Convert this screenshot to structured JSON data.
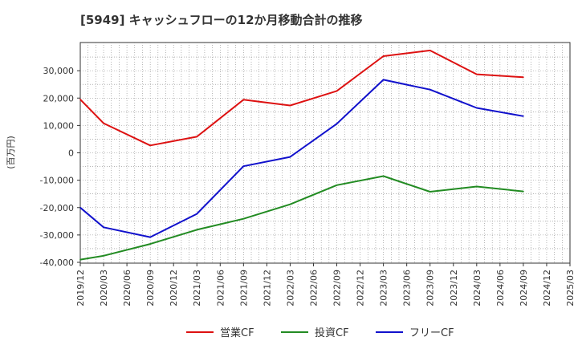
{
  "chart_data": {
    "type": "line",
    "title": "[5949]  キャッシュフローの12か月移動合計の推移",
    "xlabel": "",
    "ylabel": "(百万円)",
    "ylim": [
      -40000,
      40000
    ],
    "y_ticks": [
      -40000,
      -30000,
      -20000,
      -10000,
      0,
      10000,
      20000,
      30000
    ],
    "y_tick_labels": [
      "-40,000",
      "-30,000",
      "-20,000",
      "-10,000",
      "0",
      "10,000",
      "20,000",
      "30,000"
    ],
    "x_ticks": [
      "2019/12",
      "2020/03",
      "2020/06",
      "2020/09",
      "2020/12",
      "2021/03",
      "2021/06",
      "2021/09",
      "2021/12",
      "2022/03",
      "2022/06",
      "2022/09",
      "2022/12",
      "2023/03",
      "2023/06",
      "2023/09",
      "2023/12",
      "2024/03",
      "2024/06",
      "2024/09",
      "2024/12",
      "2025/03"
    ],
    "grid": true,
    "legend_position": "bottom",
    "series": [
      {
        "name": "営業CF",
        "color": "#dd1111",
        "x": [
          "2019/12",
          "2020/03",
          "2020/09",
          "2021/03",
          "2021/09",
          "2022/03",
          "2022/09",
          "2023/03",
          "2023/09",
          "2024/03",
          "2024/09"
        ],
        "values": [
          19500,
          10800,
          2700,
          5900,
          19400,
          17300,
          22600,
          35300,
          37400,
          28700,
          27600
        ]
      },
      {
        "name": "投資CF",
        "color": "#228b22",
        "x": [
          "2019/12",
          "2020/03",
          "2020/09",
          "2021/03",
          "2021/09",
          "2022/03",
          "2022/09",
          "2023/03",
          "2023/09",
          "2024/03",
          "2024/09"
        ],
        "values": [
          -39000,
          -37600,
          -33300,
          -28100,
          -24100,
          -18800,
          -11800,
          -8500,
          -14200,
          -12300,
          -14100
        ]
      },
      {
        "name": "フリーCF",
        "color": "#1111cc",
        "x": [
          "2019/12",
          "2020/03",
          "2020/09",
          "2021/03",
          "2021/09",
          "2022/03",
          "2022/09",
          "2023/03",
          "2023/09",
          "2024/03",
          "2024/09"
        ],
        "values": [
          -20000,
          -27200,
          -30800,
          -22300,
          -4900,
          -1500,
          10600,
          26700,
          23100,
          16400,
          13400
        ]
      }
    ]
  }
}
